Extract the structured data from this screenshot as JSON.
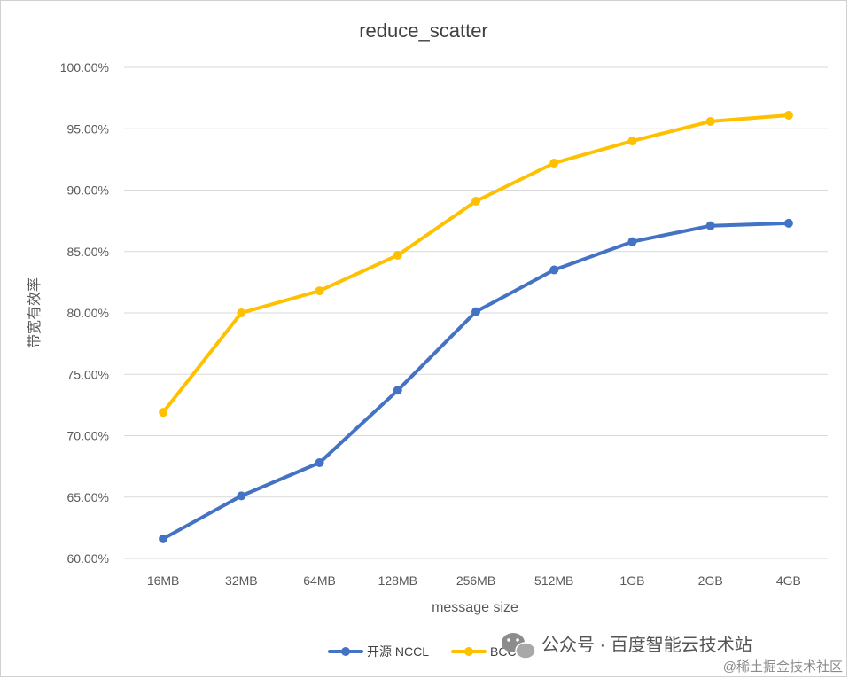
{
  "chart_data": {
    "type": "line",
    "title": "reduce_scatter",
    "xlabel": "message size",
    "ylabel": "带宽有效率",
    "categories": [
      "16MB",
      "32MB",
      "64MB",
      "128MB",
      "256MB",
      "512MB",
      "1GB",
      "2GB",
      "4GB"
    ],
    "series": [
      {
        "name": "开源 NCCL",
        "color": "#4472C4",
        "values": [
          61.6,
          65.1,
          67.8,
          73.7,
          80.1,
          83.5,
          85.8,
          87.1,
          87.3
        ]
      },
      {
        "name": "BCCL",
        "color": "#FFC000",
        "values": [
          71.9,
          80.0,
          81.8,
          84.7,
          89.1,
          92.2,
          94.0,
          95.6,
          96.1
        ]
      }
    ],
    "ylim": [
      60,
      100
    ],
    "yticks": [
      "100.00%",
      "95.00%",
      "90.00%",
      "85.00%",
      "80.00%",
      "75.00%",
      "70.00%",
      "65.00%",
      "60.00%"
    ],
    "grid": true,
    "legend": "bottom"
  },
  "watermark": {
    "text": "公众号 · 百度智能云技术站",
    "sub": "@稀土掘金技术社区",
    "icon": "wechat-icon"
  }
}
